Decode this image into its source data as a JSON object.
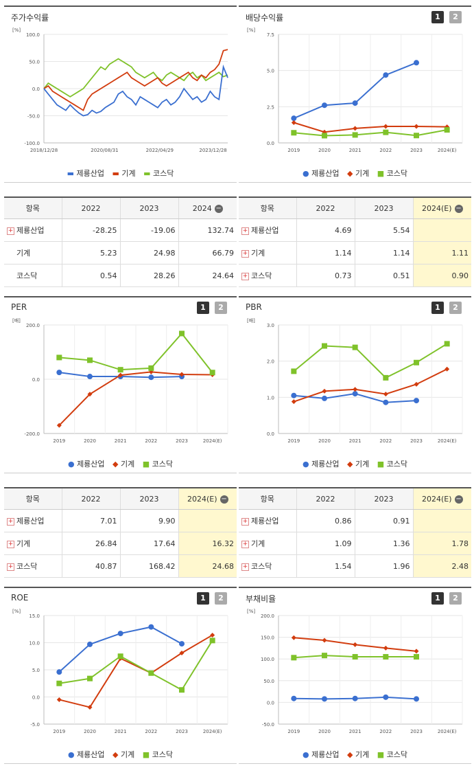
{
  "colors": {
    "s1": "#3a6fd0",
    "s2": "#d23c0e",
    "s3": "#7fc22a"
  },
  "legend": {
    "s1": "제룡산업",
    "s2": "기계",
    "s3": "코스닥"
  },
  "panels": {
    "stock": {
      "title": "주가수익률"
    },
    "dividend": {
      "title": "배당수익률",
      "btn1": "1",
      "btn2": "2"
    },
    "per": {
      "title": "PER",
      "btn1": "1",
      "btn2": "2"
    },
    "pbr": {
      "title": "PBR",
      "btn1": "1",
      "btn2": "2"
    },
    "roe": {
      "title": "ROE",
      "btn1": "1",
      "btn2": "2"
    },
    "debt": {
      "title": "부채비율",
      "btn1": "1",
      "btn2": "2"
    }
  },
  "tables": {
    "stock": {
      "headers": [
        "항목",
        "2022",
        "2023",
        "2024"
      ],
      "rows": [
        {
          "name": "제룡산업",
          "v": [
            "-28.25",
            "-19.06",
            "132.74"
          ],
          "plus": true
        },
        {
          "name": "기계",
          "v": [
            "5.23",
            "24.98",
            "66.79"
          ],
          "plus": false
        },
        {
          "name": "코스닥",
          "v": [
            "0.54",
            "28.26",
            "24.64"
          ],
          "plus": false
        }
      ]
    },
    "dividend": {
      "headers": [
        "항목",
        "2022",
        "2023",
        "2024(E)"
      ],
      "rows": [
        {
          "name": "제룡산업",
          "v": [
            "4.69",
            "5.54",
            ""
          ],
          "plus": true
        },
        {
          "name": "기계",
          "v": [
            "1.14",
            "1.14",
            "1.11"
          ],
          "plus": true
        },
        {
          "name": "코스닥",
          "v": [
            "0.73",
            "0.51",
            "0.90"
          ],
          "plus": true
        }
      ]
    },
    "per": {
      "headers": [
        "항목",
        "2022",
        "2023",
        "2024(E)"
      ],
      "rows": [
        {
          "name": "제룡산업",
          "v": [
            "7.01",
            "9.90",
            ""
          ],
          "plus": true
        },
        {
          "name": "기계",
          "v": [
            "26.84",
            "17.64",
            "16.32"
          ],
          "plus": true
        },
        {
          "name": "코스닥",
          "v": [
            "40.87",
            "168.42",
            "24.68"
          ],
          "plus": true
        }
      ]
    },
    "pbr": {
      "headers": [
        "항목",
        "2022",
        "2023",
        "2024(E)"
      ],
      "rows": [
        {
          "name": "제룡산업",
          "v": [
            "0.86",
            "0.91",
            ""
          ],
          "plus": true
        },
        {
          "name": "기계",
          "v": [
            "1.09",
            "1.36",
            "1.78"
          ],
          "plus": true
        },
        {
          "name": "코스닥",
          "v": [
            "1.54",
            "1.96",
            "2.48"
          ],
          "plus": true
        }
      ]
    }
  },
  "chart_data": [
    {
      "id": "stock",
      "type": "line",
      "unit": "[%]",
      "ylim": [
        -100,
        100
      ],
      "yticks": [
        "100.0",
        "50.0",
        "0.0",
        "-50.0",
        "-100.0"
      ],
      "xticks": [
        "2018/12/28",
        "2020/08/31",
        "2022/04/29",
        "2023/12/28"
      ],
      "series": [
        {
          "name": "제룡산업",
          "values": [
            0,
            -10,
            -20,
            -30,
            -35,
            -40,
            -30,
            -38,
            -45,
            -50,
            -48,
            -40,
            -45,
            -42,
            -35,
            -30,
            -25,
            -10,
            -5,
            -15,
            -20,
            -30,
            -15,
            -20,
            -25,
            -30,
            -35,
            -25,
            -20,
            -30,
            -25,
            -15,
            0,
            -10,
            -20,
            -15,
            -25,
            -20,
            -5,
            -15,
            -20,
            40,
            20
          ]
        },
        {
          "name": "기계",
          "values": [
            0,
            5,
            -5,
            -10,
            -15,
            -20,
            -25,
            -30,
            -35,
            -40,
            -20,
            -10,
            -5,
            0,
            5,
            10,
            15,
            20,
            25,
            30,
            20,
            15,
            10,
            5,
            10,
            15,
            20,
            10,
            5,
            10,
            15,
            20,
            25,
            30,
            20,
            15,
            25,
            20,
            30,
            35,
            45,
            70,
            72
          ]
        },
        {
          "name": "코스닥",
          "values": [
            0,
            10,
            5,
            0,
            -5,
            -10,
            -15,
            -10,
            -5,
            0,
            10,
            20,
            30,
            40,
            35,
            45,
            50,
            55,
            50,
            45,
            40,
            30,
            25,
            20,
            25,
            30,
            20,
            15,
            25,
            30,
            25,
            20,
            15,
            25,
            30,
            20,
            25,
            15,
            20,
            25,
            30,
            22,
            25
          ]
        }
      ]
    },
    {
      "id": "dividend",
      "type": "line",
      "unit": "[%]",
      "ylim": [
        0,
        7.5
      ],
      "yticks": [
        "7.5",
        "5.0",
        "2.5",
        "0.0"
      ],
      "categories": [
        "2019",
        "2020",
        "2021",
        "2022",
        "2023",
        "2024(E)"
      ],
      "series": [
        {
          "name": "제룡산업",
          "values": [
            1.7,
            2.6,
            2.75,
            4.69,
            5.54,
            null
          ]
        },
        {
          "name": "기계",
          "values": [
            1.4,
            0.75,
            1.0,
            1.14,
            1.14,
            1.11
          ]
        },
        {
          "name": "코스닥",
          "values": [
            0.7,
            0.5,
            0.55,
            0.73,
            0.51,
            0.9
          ]
        }
      ]
    },
    {
      "id": "per",
      "type": "line",
      "unit": "[배]",
      "ylim": [
        -200,
        200
      ],
      "yticks": [
        "200.0",
        "0.0",
        "-200.0"
      ],
      "categories": [
        "2019",
        "2020",
        "2021",
        "2022",
        "2023",
        "2024(E)"
      ],
      "series": [
        {
          "name": "제룡산업",
          "values": [
            25,
            10,
            10,
            7.01,
            9.9,
            null
          ]
        },
        {
          "name": "기계",
          "values": [
            -170,
            -55,
            15,
            26.84,
            17.64,
            16.32
          ]
        },
        {
          "name": "코스닥",
          "values": [
            80,
            70,
            35,
            40.87,
            168.42,
            24.68
          ]
        }
      ]
    },
    {
      "id": "pbr",
      "type": "line",
      "unit": "[배]",
      "ylim": [
        0,
        3
      ],
      "yticks": [
        "3.0",
        "2.0",
        "1.0",
        "0.0"
      ],
      "categories": [
        "2019",
        "2020",
        "2021",
        "2022",
        "2023",
        "2024(E)"
      ],
      "series": [
        {
          "name": "제룡산업",
          "values": [
            1.05,
            0.97,
            1.1,
            0.86,
            0.91,
            null
          ]
        },
        {
          "name": "기계",
          "values": [
            0.88,
            1.17,
            1.22,
            1.09,
            1.36,
            1.78
          ]
        },
        {
          "name": "코스닥",
          "values": [
            1.72,
            2.42,
            2.38,
            1.54,
            1.96,
            2.48
          ]
        }
      ]
    },
    {
      "id": "roe",
      "type": "line",
      "unit": "[%]",
      "ylim": [
        -5,
        15
      ],
      "yticks": [
        "15.0",
        "10.0",
        "5.0",
        "0.0",
        "-5.0"
      ],
      "categories": [
        "2019",
        "2020",
        "2021",
        "2022",
        "2023",
        "2024(E)"
      ],
      "series": [
        {
          "name": "제룡산업",
          "values": [
            4.6,
            9.7,
            11.7,
            12.9,
            9.8,
            null
          ]
        },
        {
          "name": "기계",
          "values": [
            -0.5,
            -1.9,
            7.1,
            4.4,
            8.1,
            11.4
          ]
        },
        {
          "name": "코스닥",
          "values": [
            2.5,
            3.4,
            7.5,
            4.4,
            1.3,
            10.4
          ]
        }
      ]
    },
    {
      "id": "debt",
      "type": "line",
      "unit": "[%]",
      "ylim": [
        -50,
        200
      ],
      "yticks": [
        "200.0",
        "150.0",
        "100.0",
        "50.0",
        "0.0",
        "-50.0"
      ],
      "categories": [
        "2019",
        "2020",
        "2021",
        "2022",
        "2023",
        "2024(E)"
      ],
      "series": [
        {
          "name": "제룡산업",
          "values": [
            9,
            8,
            9,
            12,
            8,
            null
          ]
        },
        {
          "name": "기계",
          "values": [
            149,
            143,
            133,
            125,
            118,
            null
          ]
        },
        {
          "name": "코스닥",
          "values": [
            103,
            108,
            105,
            105,
            105,
            null
          ]
        }
      ]
    }
  ]
}
